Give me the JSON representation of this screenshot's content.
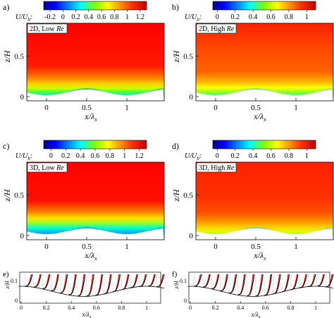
{
  "panels": [
    {
      "letter": "a)",
      "tag": "2D, Low ",
      "tag_it": "Re",
      "cbar_label": "U/U",
      "cbar_sub": "b",
      "ticks": [
        "-0.2",
        "0",
        "0.2",
        "0.4",
        "0.6",
        "0.8",
        "1",
        "1.2"
      ],
      "cmin": -0.3,
      "cmax": 1.3,
      "tickvals": [
        -0.2,
        0,
        0.2,
        0.4,
        0.6,
        0.8,
        1,
        1.2
      ],
      "xlabel": "x/λ",
      "xsub": "x",
      "ylabel": "z/H",
      "xticks": [
        "0",
        "0.5",
        "1"
      ],
      "yticks": [
        "0",
        "0.5"
      ]
    },
    {
      "letter": "b)",
      "tag": "2D, High ",
      "tag_it": "Re",
      "cbar_label": "U/U",
      "cbar_sub": "b",
      "ticks": [
        "0",
        "0.2",
        "0.4",
        "0.6",
        "0.8",
        "1"
      ],
      "cmin": -0.05,
      "cmax": 1.1,
      "tickvals": [
        0,
        0.2,
        0.4,
        0.6,
        0.8,
        1
      ],
      "xlabel": "x/λ",
      "xsub": "x",
      "ylabel": "z/H",
      "xticks": [
        "0",
        "0.5",
        "1"
      ],
      "yticks": [
        "0",
        "0.5"
      ]
    },
    {
      "letter": "c)",
      "tag": "3D, Low ",
      "tag_it": "Re",
      "cbar_label": "U/U",
      "cbar_sub": "b",
      "ticks": [
        "0",
        "0.2",
        "0.4",
        "0.6",
        "0.8",
        "1",
        "1.2"
      ],
      "cmin": -0.1,
      "cmax": 1.3,
      "tickvals": [
        0,
        0.2,
        0.4,
        0.6,
        0.8,
        1,
        1.2
      ],
      "xlabel": "x/λ",
      "xsub": "x",
      "ylabel": "z/H",
      "xticks": [
        "0",
        "0.5",
        "1"
      ],
      "yticks": [
        "0",
        "0.5"
      ]
    },
    {
      "letter": "d)",
      "tag": "3D, High ",
      "tag_it": "Re",
      "cbar_label": "U/U",
      "cbar_sub": "b",
      "ticks": [
        "0",
        "0.2",
        "0.4",
        "0.6",
        "0.8",
        "1"
      ],
      "cmin": -0.05,
      "cmax": 1.1,
      "tickvals": [
        0,
        0.2,
        0.4,
        0.6,
        0.8,
        1
      ],
      "xlabel": "x/λ",
      "xsub": "x",
      "ylabel": "z/H",
      "xticks": [
        "0",
        "0.5",
        "1"
      ],
      "yticks": [
        "0",
        "0.5"
      ]
    }
  ],
  "profiles": [
    {
      "letter": "e)",
      "ylabel": "z/H",
      "xlabel": "x/λ",
      "xsub": "x",
      "xticks": [
        "0",
        "0.2",
        "0.4",
        "0.6",
        "0.8",
        "1"
      ],
      "yticks": [
        "0",
        "0.1"
      ]
    },
    {
      "letter": "f)",
      "ylabel": "z/H",
      "xlabel": "x/λ",
      "xsub": "x",
      "xticks": [
        "0",
        "0.2",
        "0.4",
        "0.6",
        "0.8",
        "1"
      ],
      "yticks": [
        "0",
        "0.1"
      ]
    }
  ],
  "colors": {
    "jet": [
      "#00008f",
      "#0000ff",
      "#00ffff",
      "#80ff00",
      "#ffff00",
      "#ff8000",
      "#ff0000",
      "#800000"
    ],
    "profile_red": "#e00000",
    "profile_black": "#000000"
  }
}
